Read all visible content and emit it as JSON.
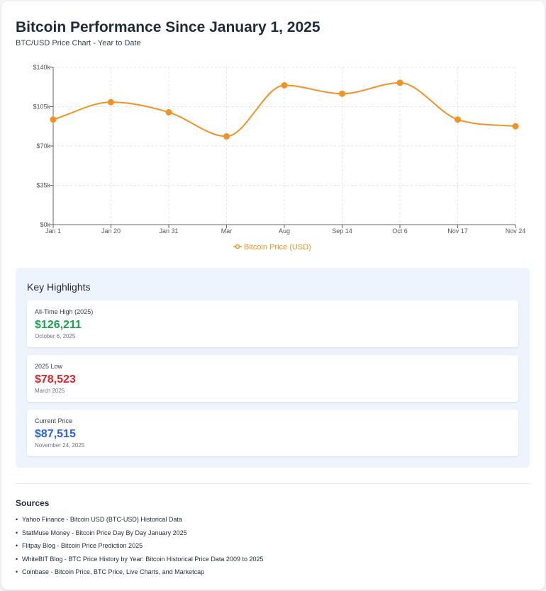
{
  "page": {
    "title": "Bitcoin Performance Since January 1, 2025",
    "subtitle": "BTC/USD Price Chart - Year to Date"
  },
  "chart_data": {
    "type": "line",
    "categories": [
      "Jan 1",
      "Jan 20",
      "Jan 31",
      "Mar",
      "Aug",
      "Sep 14",
      "Oct 6",
      "Nov 17",
      "Nov 24"
    ],
    "series": [
      {
        "name": "Bitcoin Price (USD)",
        "values": [
          93500,
          109000,
          100000,
          78523,
          124000,
          116500,
          126211,
          93500,
          87515
        ],
        "color": "#f39223"
      }
    ],
    "ylim": [
      0,
      140000
    ],
    "yticks": [
      0,
      35000,
      70000,
      105000,
      140000
    ],
    "ytick_labels": [
      "$0k",
      "$35k",
      "$70k",
      "$105k",
      "$140k"
    ],
    "grid": true,
    "legend": "bottom"
  },
  "highlights": {
    "title": "Key Highlights",
    "items": [
      {
        "label": "All-Time High (2025)",
        "value": "$126,211",
        "date": "October 6, 2025",
        "color": "#16a34a"
      },
      {
        "label": "2025 Low",
        "value": "$78,523",
        "date": "March 2025",
        "color": "#dc2626"
      },
      {
        "label": "Current Price",
        "value": "$87,515",
        "date": "November 24, 2025",
        "color": "#2563eb"
      }
    ]
  },
  "sources": {
    "title": "Sources",
    "items": [
      "Yahoo Finance - Bitcoin USD (BTC-USD) Historical Data",
      "StatMuse Money - Bitcoin Price Day By Day January 2025",
      "Flitpay Blog - Bitcoin Price Prediction 2025",
      "WhiteBIT Blog - BTC Price History by Year: Bitcoin Historical Price Data 2009 to 2025",
      "Coinbase - Bitcoin Price, BTC Price, Live Charts, and Marketcap"
    ]
  }
}
